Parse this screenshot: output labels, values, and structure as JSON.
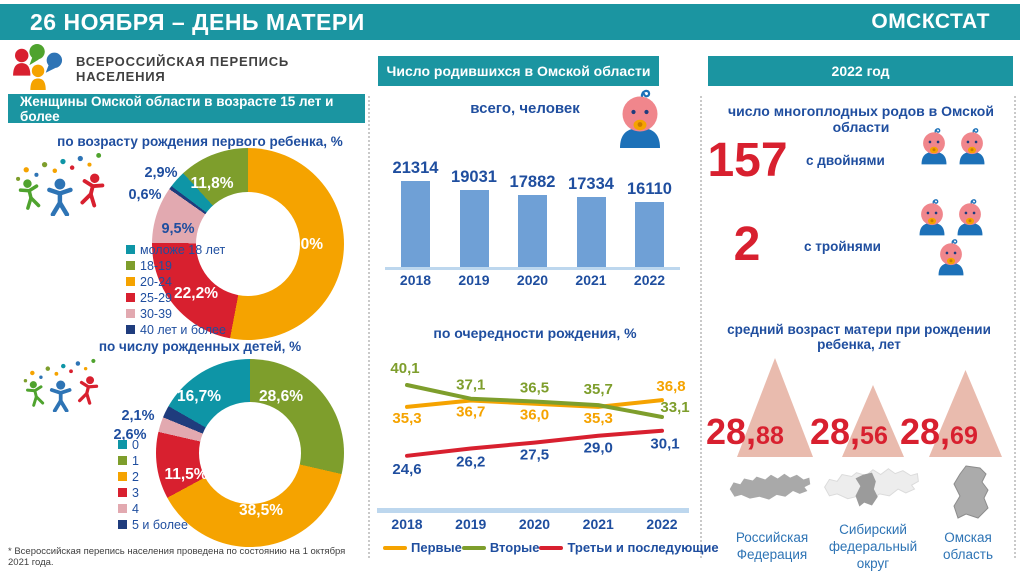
{
  "header": {
    "title": "26 НОЯБРЯ – ДЕНЬ МАТЕРИ",
    "org": "ОМСКСТАТ"
  },
  "census": {
    "logo_label": "ВСЕРОССИЙСКАЯ ПЕРЕПИСЬ НАСЕЛЕНИЯ",
    "banner": "Женщины Омской области в возрасте 15 лет и более",
    "footnote": "* Всероссийская перепись населения проведена по состоянию на 1 октября 2021 года."
  },
  "middle": {
    "header": "Число родившихся в Омской области"
  },
  "right": {
    "header": "2022 год",
    "multiple_births_title": "число многоплодных родов в Омской области",
    "twins": {
      "value": "157",
      "label": "с двойнями"
    },
    "triplets": {
      "value": "2",
      "label": "с тройнями"
    },
    "avg_age_title": "средний возраст матери при рождении ребенка, лет",
    "regions": [
      {
        "value_main": "28,",
        "value_frac": "88",
        "name": "Российская Федерация"
      },
      {
        "value_main": "28,",
        "value_frac": "56",
        "name": "Сибирский федеральный округ"
      },
      {
        "value_main": "28,",
        "value_frac": "69",
        "name": "Омская область"
      }
    ]
  },
  "chart_data": [
    {
      "type": "pie",
      "variant": "donut",
      "title": "по возрасту рождения первого ребенка,  %",
      "legend_position": "left",
      "slices": [
        {
          "label": "моложе 18 лет",
          "value": 2.9,
          "display": "2,9%",
          "color": "#0E95A6"
        },
        {
          "label": "18-19",
          "value": 11.8,
          "display": "11,8%",
          "color": "#7E9E2C"
        },
        {
          "label": "20-24",
          "value": 53.0,
          "display": "53,0%",
          "color": "#F5A300"
        },
        {
          "label": "25-29",
          "value": 22.2,
          "display": "22,2%",
          "color": "#D8202F"
        },
        {
          "label": "30-39",
          "value": 9.5,
          "display": "9,5%",
          "color": "#E2A9B0"
        },
        {
          "label": "40 лет и более",
          "value": 0.6,
          "display": "0,6%",
          "color": "#1F3C7D"
        }
      ],
      "draw_order": [
        2,
        3,
        4,
        5,
        0,
        1
      ]
    },
    {
      "type": "pie",
      "variant": "donut",
      "title": "по числу рожденных детей,  %",
      "legend_position": "left",
      "slices": [
        {
          "label": "0",
          "value": 16.7,
          "display": "16,7%",
          "color": "#0E95A6"
        },
        {
          "label": "1",
          "value": 28.6,
          "display": "28,6%",
          "color": "#7E9E2C"
        },
        {
          "label": "2",
          "value": 38.5,
          "display": "38,5%",
          "color": "#F5A300"
        },
        {
          "label": "3",
          "value": 11.5,
          "display": "11,5%",
          "color": "#D8202F"
        },
        {
          "label": "4",
          "value": 2.6,
          "display": "2,6%",
          "color": "#E2A9B0"
        },
        {
          "label": "5 и более",
          "value": 2.1,
          "display": "2,1%",
          "color": "#1F3C7D"
        }
      ],
      "draw_order": [
        1,
        2,
        3,
        4,
        5,
        0
      ]
    },
    {
      "type": "bar",
      "title": "всего, человек",
      "categories": [
        "2018",
        "2019",
        "2020",
        "2021",
        "2022"
      ],
      "values": [
        21314,
        19031,
        17882,
        17334,
        16110
      ],
      "bar_color": "#6FA0D6",
      "ylim": [
        0,
        21314
      ]
    },
    {
      "type": "line",
      "title": "по очередности рождения,  %",
      "x": [
        "2018",
        "2019",
        "2020",
        "2021",
        "2022"
      ],
      "series": [
        {
          "name": "Первые",
          "color": "#F5A300",
          "label_color": "#F5A300",
          "values": [
            35.3,
            36.7,
            36.0,
            35.3,
            36.8
          ]
        },
        {
          "name": "Вторые",
          "color": "#7E9E2C",
          "label_color": "#7E9E2C",
          "values": [
            40.1,
            37.1,
            36.5,
            35.7,
            33.1
          ]
        },
        {
          "name": "Третьи и последующие",
          "color": "#D8202F",
          "label_color": "#1F4E9F",
          "values": [
            24.6,
            26.2,
            27.5,
            29.0,
            30.1
          ]
        }
      ],
      "ylim": [
        24,
        41
      ],
      "legend_position": "bottom"
    }
  ]
}
